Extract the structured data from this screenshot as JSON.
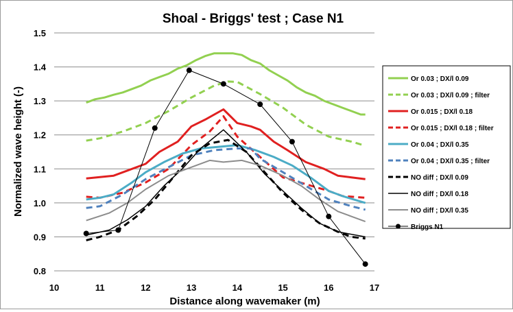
{
  "chart_data": {
    "type": "line",
    "title": "Shoal - Briggs' test ; Case N1",
    "xlabel": "Distance along wavemaker (m)",
    "ylabel": "Normalized wave height (-)",
    "xlim": [
      10,
      17
    ],
    "ylim": [
      0.8,
      1.5
    ],
    "xticks": [
      "10",
      "11",
      "12",
      "13",
      "14",
      "15",
      "16",
      "17"
    ],
    "yticks": [
      "0.8",
      "0.9",
      "1.0",
      "1.1",
      "1.2",
      "1.3",
      "1.4",
      "1.5"
    ],
    "grid": "horizontal",
    "legend_position": "right",
    "series": [
      {
        "name": "Or 0.03 ; DX/l 0.09",
        "color": "#92d050",
        "dash": "solid",
        "width": 3,
        "marker": "none",
        "x": [
          10.7,
          10.9,
          11.1,
          11.3,
          11.5,
          11.7,
          11.9,
          12.1,
          12.3,
          12.5,
          12.7,
          12.9,
          13.1,
          13.3,
          13.5,
          13.7,
          13.9,
          14.1,
          14.3,
          14.5,
          14.7,
          14.9,
          15.1,
          15.3,
          15.5,
          15.7,
          15.9,
          16.1,
          16.3,
          16.5,
          16.7,
          16.8
        ],
        "y": [
          1.295,
          1.305,
          1.31,
          1.318,
          1.325,
          1.335,
          1.345,
          1.36,
          1.37,
          1.38,
          1.395,
          1.405,
          1.42,
          1.432,
          1.44,
          1.44,
          1.44,
          1.435,
          1.42,
          1.41,
          1.39,
          1.375,
          1.36,
          1.34,
          1.325,
          1.315,
          1.3,
          1.29,
          1.28,
          1.27,
          1.26,
          1.26
        ]
      },
      {
        "name": "Or 0.03 ; DX/l 0.09 ; filter",
        "color": "#92d050",
        "dash": "dash",
        "width": 3,
        "marker": "none",
        "x": [
          10.7,
          11.0,
          11.5,
          12.0,
          12.5,
          13.0,
          13.5,
          13.8,
          14.0,
          14.5,
          15.0,
          15.5,
          16.0,
          16.5,
          16.8
        ],
        "y": [
          1.183,
          1.19,
          1.21,
          1.235,
          1.27,
          1.31,
          1.345,
          1.357,
          1.356,
          1.32,
          1.28,
          1.23,
          1.195,
          1.18,
          1.168
        ]
      },
      {
        "name": "Or 0.015 ; DX/l 0.18",
        "color": "#e02020",
        "dash": "solid",
        "width": 3,
        "marker": "none",
        "x": [
          10.7,
          11.0,
          11.3,
          11.6,
          12.0,
          12.3,
          12.7,
          13.0,
          13.3,
          13.7,
          14.0,
          14.3,
          14.5,
          14.8,
          15.1,
          15.5,
          15.9,
          16.2,
          16.5,
          16.8
        ],
        "y": [
          1.072,
          1.076,
          1.08,
          1.095,
          1.115,
          1.15,
          1.18,
          1.225,
          1.245,
          1.275,
          1.235,
          1.225,
          1.215,
          1.18,
          1.155,
          1.12,
          1.1,
          1.08,
          1.075,
          1.07
        ]
      },
      {
        "name": "Or 0.015 ; DX/l 0.18 ; filter",
        "color": "#e02020",
        "dash": "dash",
        "width": 3,
        "marker": "none",
        "x": [
          10.7,
          11.0,
          11.5,
          12.0,
          12.5,
          13.0,
          13.4,
          13.7,
          14.0,
          14.5,
          15.0,
          15.5,
          16.0,
          16.3,
          16.8
        ],
        "y": [
          1.018,
          1.015,
          1.03,
          1.06,
          1.1,
          1.17,
          1.21,
          1.255,
          1.195,
          1.135,
          1.075,
          1.055,
          1.035,
          1.02,
          1.015
        ]
      },
      {
        "name": "Or 0.04 ; DX/l 0.35",
        "color": "#4bacc6",
        "dash": "solid",
        "width": 3,
        "marker": "none",
        "x": [
          10.7,
          11.0,
          11.3,
          11.7,
          12.0,
          12.4,
          12.8,
          13.2,
          13.6,
          14.0,
          14.4,
          14.8,
          15.2,
          15.6,
          16.0,
          16.3,
          16.8
        ],
        "y": [
          1.01,
          1.015,
          1.025,
          1.06,
          1.09,
          1.12,
          1.145,
          1.16,
          1.165,
          1.17,
          1.155,
          1.135,
          1.11,
          1.075,
          1.035,
          1.02,
          1.0
        ]
      },
      {
        "name": "Or 0.04 ; DX/l 0.35 ; filter",
        "color": "#4f81bd",
        "dash": "dash",
        "width": 3,
        "marker": "none",
        "x": [
          10.7,
          11.0,
          11.5,
          12.0,
          12.5,
          13.0,
          13.5,
          14.0,
          14.3,
          14.5,
          15.0,
          15.5,
          16.0,
          16.5,
          16.8
        ],
        "y": [
          0.985,
          0.99,
          1.025,
          1.07,
          1.105,
          1.14,
          1.155,
          1.16,
          1.16,
          1.13,
          1.09,
          1.05,
          1.01,
          0.99,
          0.98
        ]
      },
      {
        "name": "NO diff ; DX/l 0.09",
        "color": "#000000",
        "dash": "dash",
        "width": 3,
        "marker": "none",
        "x": [
          10.7,
          11.0,
          11.4,
          11.8,
          12.2,
          12.6,
          13.0,
          13.4,
          13.8,
          14.2,
          14.6,
          15.0,
          15.4,
          15.8,
          16.2,
          16.5,
          16.8
        ],
        "y": [
          0.89,
          0.9,
          0.92,
          0.96,
          1.01,
          1.075,
          1.14,
          1.175,
          1.185,
          1.15,
          1.09,
          1.03,
          0.98,
          0.94,
          0.915,
          0.9,
          0.895
        ]
      },
      {
        "name": "NO diff ; DX/l 0.18",
        "color": "#000000",
        "dash": "solid",
        "width": 1.5,
        "marker": "none",
        "x": [
          10.7,
          11.2,
          11.6,
          12.0,
          12.4,
          12.8,
          13.2,
          13.7,
          14.2,
          14.6,
          15.0,
          15.4,
          15.8,
          16.2,
          16.8
        ],
        "y": [
          0.905,
          0.92,
          0.95,
          0.99,
          1.05,
          1.1,
          1.16,
          1.215,
          1.15,
          1.085,
          1.035,
          0.985,
          0.94,
          0.915,
          0.9
        ]
      },
      {
        "name": "NO diff ; DX/l 0.35",
        "color": "#8c8c8c",
        "dash": "solid",
        "width": 2,
        "marker": "none",
        "x": [
          10.7,
          11.2,
          11.6,
          12.0,
          12.5,
          13.0,
          13.4,
          13.7,
          14.1,
          14.5,
          15.0,
          15.4,
          15.8,
          16.2,
          16.5,
          16.8
        ],
        "y": [
          0.948,
          0.97,
          1.0,
          1.04,
          1.08,
          1.105,
          1.125,
          1.12,
          1.125,
          1.11,
          1.08,
          1.05,
          1.01,
          0.975,
          0.96,
          0.945
        ]
      },
      {
        "name": "Briggs N1",
        "color": "#000000",
        "dash": "solid",
        "width": 1,
        "marker": "circle",
        "x": [
          10.7,
          11.4,
          12.2,
          12.95,
          13.7,
          14.5,
          15.2,
          16.0,
          16.8
        ],
        "y": [
          0.91,
          0.92,
          1.22,
          1.39,
          1.35,
          1.29,
          1.18,
          0.96,
          0.82
        ]
      }
    ]
  }
}
